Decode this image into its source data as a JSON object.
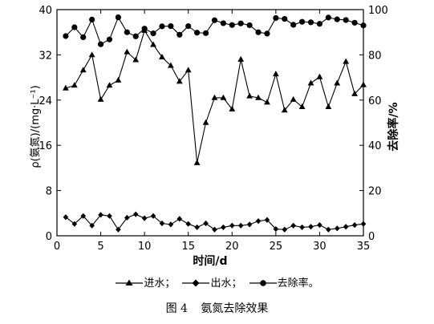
{
  "chart_data": {
    "type": "line",
    "xlabel": "时间/d",
    "ylabel_left": "ρ(氨氮)/(mg·L⁻¹)",
    "ylabel_right": "去除率/%",
    "xlim": [
      0,
      35
    ],
    "ylim_left": [
      0,
      40
    ],
    "ylim_right": [
      0,
      100
    ],
    "xticks": [
      0,
      5,
      10,
      15,
      20,
      25,
      30,
      35
    ],
    "yticks_left": [
      0,
      8,
      16,
      24,
      32,
      40
    ],
    "yticks_right": [
      0,
      20,
      40,
      60,
      80,
      100
    ],
    "series": [
      {
        "name": "进水",
        "axis": "left",
        "marker": "triangle",
        "x": [
          1,
          2,
          3,
          4,
          5,
          6,
          7,
          8,
          9,
          10,
          11,
          12,
          13,
          14,
          15,
          16,
          17,
          18,
          19,
          20,
          21,
          22,
          23,
          24,
          25,
          26,
          27,
          28,
          29,
          30,
          31,
          32,
          33,
          34,
          35
        ],
        "values": [
          26.1,
          26.6,
          29.3,
          32.0,
          24.1,
          26.6,
          27.5,
          32.5,
          31.1,
          36.3,
          33.8,
          31.6,
          30.1,
          27.3,
          29.3,
          12.9,
          20.0,
          24.4,
          24.4,
          22.4,
          31.2,
          24.7,
          24.4,
          23.6,
          28.6,
          22.2,
          24.1,
          22.8,
          27.0,
          28.1,
          22.8,
          27.0,
          30.8,
          25.1,
          26.7
        ]
      },
      {
        "name": "出水",
        "axis": "left",
        "marker": "diamond",
        "x": [
          1,
          2,
          3,
          4,
          5,
          6,
          7,
          8,
          9,
          10,
          11,
          12,
          13,
          14,
          15,
          16,
          17,
          18,
          19,
          20,
          21,
          22,
          23,
          24,
          25,
          26,
          27,
          28,
          29,
          30,
          31,
          32,
          33,
          34,
          35
        ],
        "values": [
          3.3,
          2.1,
          3.5,
          1.8,
          3.7,
          3.5,
          1.1,
          3.2,
          3.8,
          3.1,
          3.5,
          2.2,
          2.0,
          3.0,
          2.1,
          1.5,
          2.2,
          1.1,
          1.5,
          1.8,
          1.8,
          2.0,
          2.6,
          2.8,
          1.2,
          1.1,
          1.8,
          1.5,
          1.6,
          1.9,
          1.1,
          1.3,
          1.6,
          1.9,
          2.1
        ]
      },
      {
        "name": "去除率",
        "axis": "right",
        "marker": "circle",
        "x": [
          1,
          2,
          3,
          4,
          5,
          6,
          7,
          8,
          9,
          10,
          11,
          12,
          13,
          14,
          15,
          16,
          17,
          18,
          19,
          20,
          21,
          22,
          23,
          24,
          25,
          26,
          27,
          28,
          29,
          30,
          31,
          32,
          33,
          34,
          35
        ],
        "values": [
          88.3,
          92.2,
          87.8,
          95.6,
          84.7,
          86.8,
          96.6,
          90.0,
          88.2,
          91.6,
          89.5,
          92.6,
          92.7,
          88.9,
          92.7,
          89.8,
          89.6,
          95.3,
          94.0,
          93.2,
          93.9,
          93.1,
          90.0,
          89.4,
          96.3,
          95.9,
          93.3,
          94.6,
          94.4,
          93.7,
          96.5,
          95.7,
          95.4,
          94.2,
          93.0
        ]
      }
    ]
  },
  "legend": {
    "items": [
      {
        "label": "进水",
        "sep": "；"
      },
      {
        "label": "出水",
        "sep": "；"
      },
      {
        "label": "去除率",
        "sep": "。"
      }
    ]
  },
  "caption": {
    "number": "图 4",
    "text": "氨氮去除效果"
  }
}
